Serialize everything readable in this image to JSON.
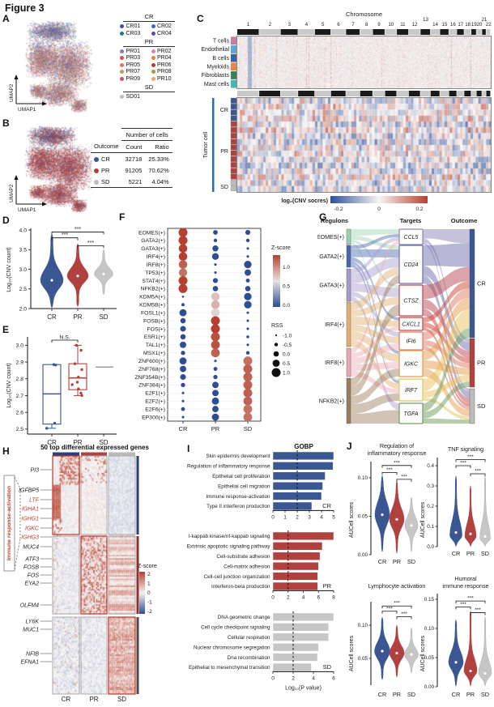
{
  "figure_title": "Figure 3",
  "colors": {
    "cr": "#3a5693",
    "pr": "#b0413e",
    "sd": "#c6c6c6",
    "heat_low": "#2f4f9a",
    "heat_high": "#b5402f"
  },
  "panelA": {
    "label": "A",
    "x_axis": "UMAP1",
    "y_axis": "UMAP2",
    "legend_groups": [
      {
        "title": "CR",
        "items": [
          {
            "id": "CR01",
            "color": "#3f51a3"
          },
          {
            "id": "CR02",
            "color": "#3e6db6"
          },
          {
            "id": "CR03",
            "color": "#27797f"
          },
          {
            "id": "CR04",
            "color": "#54529e"
          }
        ]
      },
      {
        "title": "PR",
        "items": [
          {
            "id": "PR01",
            "color": "#9378b8"
          },
          {
            "id": "PR02",
            "color": "#c98ab8"
          },
          {
            "id": "PR03",
            "color": "#d4524e"
          },
          {
            "id": "PR04",
            "color": "#e2823f"
          },
          {
            "id": "PR05",
            "color": "#e5756b"
          },
          {
            "id": "PR06",
            "color": "#bb3a38"
          },
          {
            "id": "PR07",
            "color": "#bd9969"
          },
          {
            "id": "PR08",
            "color": "#a99a40"
          },
          {
            "id": "PR09",
            "color": "#c2596e"
          },
          {
            "id": "PR10",
            "color": "#eda272"
          }
        ]
      },
      {
        "title": "SD",
        "items": [
          {
            "id": "SD01",
            "color": "#bcbcbc"
          }
        ]
      }
    ]
  },
  "panelB": {
    "label": "B",
    "x_axis": "UMAP1",
    "y_axis": "UMAP2",
    "table": {
      "span_header": "Number of cells",
      "columns": [
        "Outcome",
        "Count",
        "Ratio"
      ],
      "rows": [
        {
          "outcome": "CR",
          "color": "#3a5693",
          "count": "32718",
          "ratio": "25.33%"
        },
        {
          "outcome": "PR",
          "color": "#b0413e",
          "count": "91205",
          "ratio": "70.62%"
        },
        {
          "outcome": "SD",
          "color": "#bcbcbc",
          "count": "5221",
          "ratio": "4.04%"
        }
      ]
    }
  },
  "panelC": {
    "label": "C",
    "title": "Chromosome",
    "chromosomes": [
      "1",
      "2",
      "3",
      "4",
      "5",
      "6",
      "7",
      "8",
      "9",
      "10",
      "11",
      "12",
      "13",
      "14",
      "15",
      "16",
      "17",
      "18",
      "19",
      "20",
      "21",
      "22"
    ],
    "cell_types": [
      {
        "name": "T cells",
        "color": "#c77da2"
      },
      {
        "name": "Endothelial",
        "color": "#5aa7d4"
      },
      {
        "name": "B cells",
        "color": "#3b5fa0"
      },
      {
        "name": "Myeloids",
        "color": "#e8854a"
      },
      {
        "name": "Fibroblasts",
        "color": "#3e7d5a"
      },
      {
        "name": "Mast cells",
        "color": "#46b8b0"
      }
    ],
    "tumor_label": "Tumor cell",
    "groups": [
      {
        "name": "CR",
        "color": "#3a5693",
        "rows": 4
      },
      {
        "name": "PR",
        "color": "#b0413e",
        "rows": 10
      },
      {
        "name": "SD",
        "color": "#bcbcbc",
        "rows": 2
      }
    ],
    "colorbar": {
      "label": "log₂(CNV socres)",
      "ticks": [
        "-0.2",
        "0",
        "0.2"
      ]
    }
  },
  "panelD": {
    "label": "D",
    "type": "violin",
    "ylabel": "Log₁₀(CNV count)",
    "ylim": [
      2.0,
      4.0
    ],
    "yticks": [
      "2.0",
      "2.5",
      "3.0",
      "3.5",
      "4.0"
    ],
    "groups": [
      "CR",
      "PR",
      "SD"
    ],
    "medians": [
      2.72,
      2.83,
      2.88
    ],
    "ranges": [
      [
        2.02,
        3.9
      ],
      [
        2.05,
        3.65
      ],
      [
        2.35,
        3.5
      ]
    ],
    "sig_label": "***"
  },
  "panelE": {
    "label": "E",
    "type": "box",
    "ylabel": "Log₁₀(CNV count)",
    "yticks": [
      "2.5",
      "2.6",
      "2.7",
      "2.8",
      "2.9",
      "3.0"
    ],
    "groups": [
      "CR",
      "PR",
      "SD"
    ],
    "boxes": {
      "CR": {
        "q1": 2.53,
        "median": 2.71,
        "q3": 2.885,
        "whisker_low": 2.505,
        "points": [
          2.885,
          2.882,
          2.535,
          2.505
        ]
      },
      "PR": {
        "q1": 2.735,
        "median": 2.805,
        "q3": 2.89,
        "whisker_high": 3.0,
        "whisker_low": 2.7,
        "points": [
          3.0,
          2.97,
          2.89,
          2.855,
          2.81,
          2.78,
          2.765,
          2.74,
          2.715,
          2.7
        ]
      },
      "SD": {
        "line": 2.87
      }
    },
    "sig_label": "N.S."
  },
  "panelF": {
    "label": "F",
    "columns": [
      "CR",
      "PR",
      "SD"
    ],
    "legend": {
      "z_title": "Z-score",
      "z_ticks": [
        "1.0",
        "0.5",
        "0.0"
      ],
      "rss_title": "RSS",
      "rss_ticks": [
        "-1.0",
        "-0.5",
        "0.0",
        "0.5",
        "1.0"
      ]
    },
    "rows": [
      {
        "name": "EOMES(+)",
        "rss": [
          1,
          -0.2,
          -0.1
        ],
        "z": [
          1,
          0,
          0
        ]
      },
      {
        "name": "GATA2(+)",
        "rss": [
          1,
          -0.5,
          -0.5
        ],
        "z": [
          1,
          0,
          0
        ]
      },
      {
        "name": "GATA3(+)",
        "rss": [
          0.9,
          0.2,
          -0.8
        ],
        "z": [
          1,
          0,
          0
        ]
      },
      {
        "name": "IRF4(+)",
        "rss": [
          0.9,
          0.4,
          -0.8
        ],
        "z": [
          1,
          0,
          0
        ]
      },
      {
        "name": "IRF8(+)",
        "rss": [
          0.9,
          -0.8,
          0.6
        ],
        "z": [
          0.9,
          0,
          0
        ]
      },
      {
        "name": "TP53(+)",
        "rss": [
          0.8,
          -0.8,
          0.3
        ],
        "z": [
          0.85,
          0,
          0
        ]
      },
      {
        "name": "STAT4(+)",
        "rss": [
          1,
          -0.1,
          -0.4
        ],
        "z": [
          1,
          0,
          0
        ]
      },
      {
        "name": "NFKB2(+)",
        "rss": [
          1,
          0,
          0
        ],
        "z": [
          1,
          0,
          0
        ]
      },
      {
        "name": "KDM5A(+)",
        "rss": [
          -0.9,
          0.85,
          0.6
        ],
        "z": [
          0,
          0.6,
          0
        ]
      },
      {
        "name": "KDM5B(+)",
        "rss": [
          -0.6,
          0.9,
          0.6
        ],
        "z": [
          0,
          0.65,
          0
        ]
      },
      {
        "name": "FOSL1(+)",
        "rss": [
          0.5,
          0.9,
          -0.8
        ],
        "z": [
          0,
          0.55,
          0
        ]
      },
      {
        "name": "FOSB(+)",
        "rss": [
          0,
          1,
          -0.8
        ],
        "z": [
          0,
          1,
          0
        ]
      },
      {
        "name": "FOS(+)",
        "rss": [
          0.1,
          1,
          -0.8
        ],
        "z": [
          0,
          1,
          0
        ]
      },
      {
        "name": "ESR1(+)",
        "rss": [
          0,
          1,
          -0.7
        ],
        "z": [
          0,
          0.95,
          0
        ]
      },
      {
        "name": "TAL1(+)",
        "rss": [
          0.3,
          0.95,
          -0.8
        ],
        "z": [
          0,
          0.95,
          0
        ]
      },
      {
        "name": "MSX1(+)",
        "rss": [
          -0.3,
          0.95,
          -0.5
        ],
        "z": [
          0,
          0.9,
          0
        ]
      },
      {
        "name": "ZNF600(+)",
        "rss": [
          0.5,
          -0.8,
          1
        ],
        "z": [
          0,
          0,
          0.85
        ]
      },
      {
        "name": "ZNF768(+)",
        "rss": [
          0.3,
          -0.4,
          1
        ],
        "z": [
          0,
          0,
          0.9
        ]
      },
      {
        "name": "ZNF354B(+)",
        "rss": [
          0.1,
          -0.3,
          1
        ],
        "z": [
          0,
          0,
          0.9
        ]
      },
      {
        "name": "ZNF384(+)",
        "rss": [
          -0.3,
          0.3,
          1
        ],
        "z": [
          0,
          0,
          0.9
        ]
      },
      {
        "name": "E2F1(+)",
        "rss": [
          -0.8,
          0.3,
          1
        ],
        "z": [
          0,
          0,
          0.9
        ]
      },
      {
        "name": "E2F2(+)",
        "rss": [
          -0.8,
          0.5,
          0.95
        ],
        "z": [
          0,
          0,
          0.9
        ]
      },
      {
        "name": "E2F6(+)",
        "rss": [
          -0.4,
          0.3,
          0.95
        ],
        "z": [
          0,
          0,
          0.85
        ]
      },
      {
        "name": "EP300(+)",
        "rss": [
          -0.8,
          0.5,
          0.95
        ],
        "z": [
          0,
          0,
          0.85
        ]
      }
    ]
  },
  "panelG": {
    "label": "G",
    "col_headers": [
      "Regulons",
      "Targets",
      "Outcome"
    ],
    "regulons": [
      {
        "name": "EOMES(+)",
        "color": "#9fd0b3"
      },
      {
        "name": "GATA2(+)",
        "color": "#4a66ad"
      },
      {
        "name": "GATA3(+)",
        "color": "#a79cc9"
      },
      {
        "name": "IRF4(+)",
        "color": "#ddb071"
      },
      {
        "name": "IRF8(+)",
        "color": "#eaa9b4"
      },
      {
        "name": "NFKB2(+)",
        "color": "#9a7c5c"
      }
    ],
    "targets": [
      {
        "name": "CCL5",
        "color": "#8e86b8"
      },
      {
        "name": "CD24",
        "color": "#6f6fae"
      },
      {
        "name": "CTSZ",
        "color": "#b84a55"
      },
      {
        "name": "CXCL1",
        "color": "#c9463c"
      },
      {
        "name": "IFI6",
        "color": "#dd7a64"
      },
      {
        "name": "IGKC",
        "color": "#e39b52"
      },
      {
        "name": "IRF7",
        "color": "#e5c45c"
      },
      {
        "name": "TGFA",
        "color": "#6f9e5d"
      }
    ],
    "outcomes": [
      {
        "name": "CR",
        "color": "#3a5693"
      },
      {
        "name": "PR",
        "color": "#b0413e"
      },
      {
        "name": "SD",
        "color": "#bcbcbc"
      }
    ]
  },
  "panelH": {
    "label": "H",
    "title": "50 top differential expressed genes",
    "sidebar_label": "Immune response-activation",
    "columns": [
      "CR",
      "PR",
      "SD"
    ],
    "genes": [
      {
        "name": "PI3",
        "red": false
      },
      {
        "name": "IGFBP5",
        "red": false
      },
      {
        "name": "LTF",
        "red": true
      },
      {
        "name": "IGHA1",
        "red": true
      },
      {
        "name": "IGHG1",
        "red": true
      },
      {
        "name": "IGKC",
        "red": true
      },
      {
        "name": "IGHG3",
        "red": true
      },
      {
        "name": "MUC4",
        "red": false
      },
      {
        "name": "ATF3",
        "red": false
      },
      {
        "name": "FOSB",
        "red": false
      },
      {
        "name": "FOS",
        "red": false
      },
      {
        "name": "EYA2",
        "red": false
      },
      {
        "name": "OLFM4",
        "red": false
      },
      {
        "name": "LY6K",
        "red": false
      },
      {
        "name": "MUC1",
        "red": false
      },
      {
        "name": "NFIB",
        "red": false
      },
      {
        "name": "EFNA1",
        "red": false
      }
    ],
    "legend": {
      "title": "Z-score",
      "ticks": [
        "2",
        "1",
        "0",
        "-1",
        "-2"
      ]
    }
  },
  "panelI": {
    "label": "I",
    "title": "GOBP",
    "xlabel": "Log₁₀(P value)",
    "charts": [
      {
        "group": "CR",
        "color": "#3a5693",
        "xmax": 5,
        "xticks": [
          "0",
          "1",
          "2",
          "3",
          "4",
          "5"
        ],
        "dash_x": 2,
        "terms": [
          "Skin epidermis development",
          "Regulation of inflammatory response",
          "Epithelial cell proliferation",
          "Epithelial cell migration",
          "Immune response-activation",
          "Type II interferon production"
        ],
        "values": [
          5.0,
          4.95,
          4.3,
          4.1,
          4.0,
          3.2
        ]
      },
      {
        "group": "PR",
        "color": "#b0413e",
        "xmax": 8,
        "xticks": [
          "0",
          "2",
          "4",
          "6",
          "8"
        ],
        "dash_x": 2,
        "terms": [
          "I-kappab kinase/nf-kappab signaling",
          "Extrinsic apoptotic signaling pathway",
          "Cell-substrate adhesion",
          "Cell-matrix adhesion",
          "Cell-cell junction organization",
          "Interferon-beta production"
        ],
        "values": [
          8.0,
          6.5,
          6.2,
          6.0,
          5.9,
          5.9
        ]
      },
      {
        "group": "SD",
        "color": "#c6c6c6",
        "xmax": 6,
        "xticks": [
          "0",
          "2",
          "4",
          "6"
        ],
        "dash_x": 2,
        "terms": [
          "DNA geometric change",
          "Cell cycle checkpoint signaling",
          "Cellular respiration",
          "Nuclear chromosome segregation",
          "Dna recombination",
          "Epithelial to mesenchymal transition"
        ],
        "values": [
          6.0,
          5.5,
          5.5,
          4.5,
          4.4,
          3.8
        ]
      }
    ]
  },
  "panelJ": {
    "label": "J",
    "ylabel": "AUCell scores",
    "groups": [
      "CR",
      "PR",
      "SD"
    ],
    "sig": "***",
    "plots": [
      {
        "title": [
          "Regulation of",
          "inflammatory response"
        ],
        "ytick_labels": [
          "0.00",
          "0.05",
          "0.10"
        ],
        "medians": [
          0.052,
          0.046,
          0.038
        ],
        "ranges": [
          [
            0.004,
            0.103
          ],
          [
            0.002,
            0.096
          ],
          [
            0.004,
            0.075
          ]
        ]
      },
      {
        "title": [
          "TNF signaling"
        ],
        "ytick_labels": [
          "0.0",
          "0.1",
          "0.2",
          "0.3",
          "0.4"
        ],
        "medians": [
          0.07,
          0.063,
          0.05
        ],
        "ranges": [
          [
            0.001,
            0.35
          ],
          [
            0.001,
            0.3
          ],
          [
            0.001,
            0.35
          ]
        ]
      },
      {
        "title": [
          "Lymphocyte activation"
        ],
        "ytick_labels": [
          "0.05",
          "0.10"
        ],
        "medians": [
          0.061,
          0.058,
          0.056
        ],
        "ranges": [
          [
            0.018,
            0.112
          ],
          [
            0.022,
            0.1
          ],
          [
            0.028,
            0.096
          ]
        ]
      },
      {
        "title": [
          "Humoral",
          "immune response"
        ],
        "ytick_labels": [
          "0.00",
          "0.05",
          "0.10",
          "0.15"
        ],
        "medians": [
          0.042,
          0.027,
          0.023
        ],
        "ranges": [
          [
            0.001,
            0.115
          ],
          [
            0.001,
            0.13
          ],
          [
            0.001,
            0.12
          ]
        ]
      }
    ]
  }
}
